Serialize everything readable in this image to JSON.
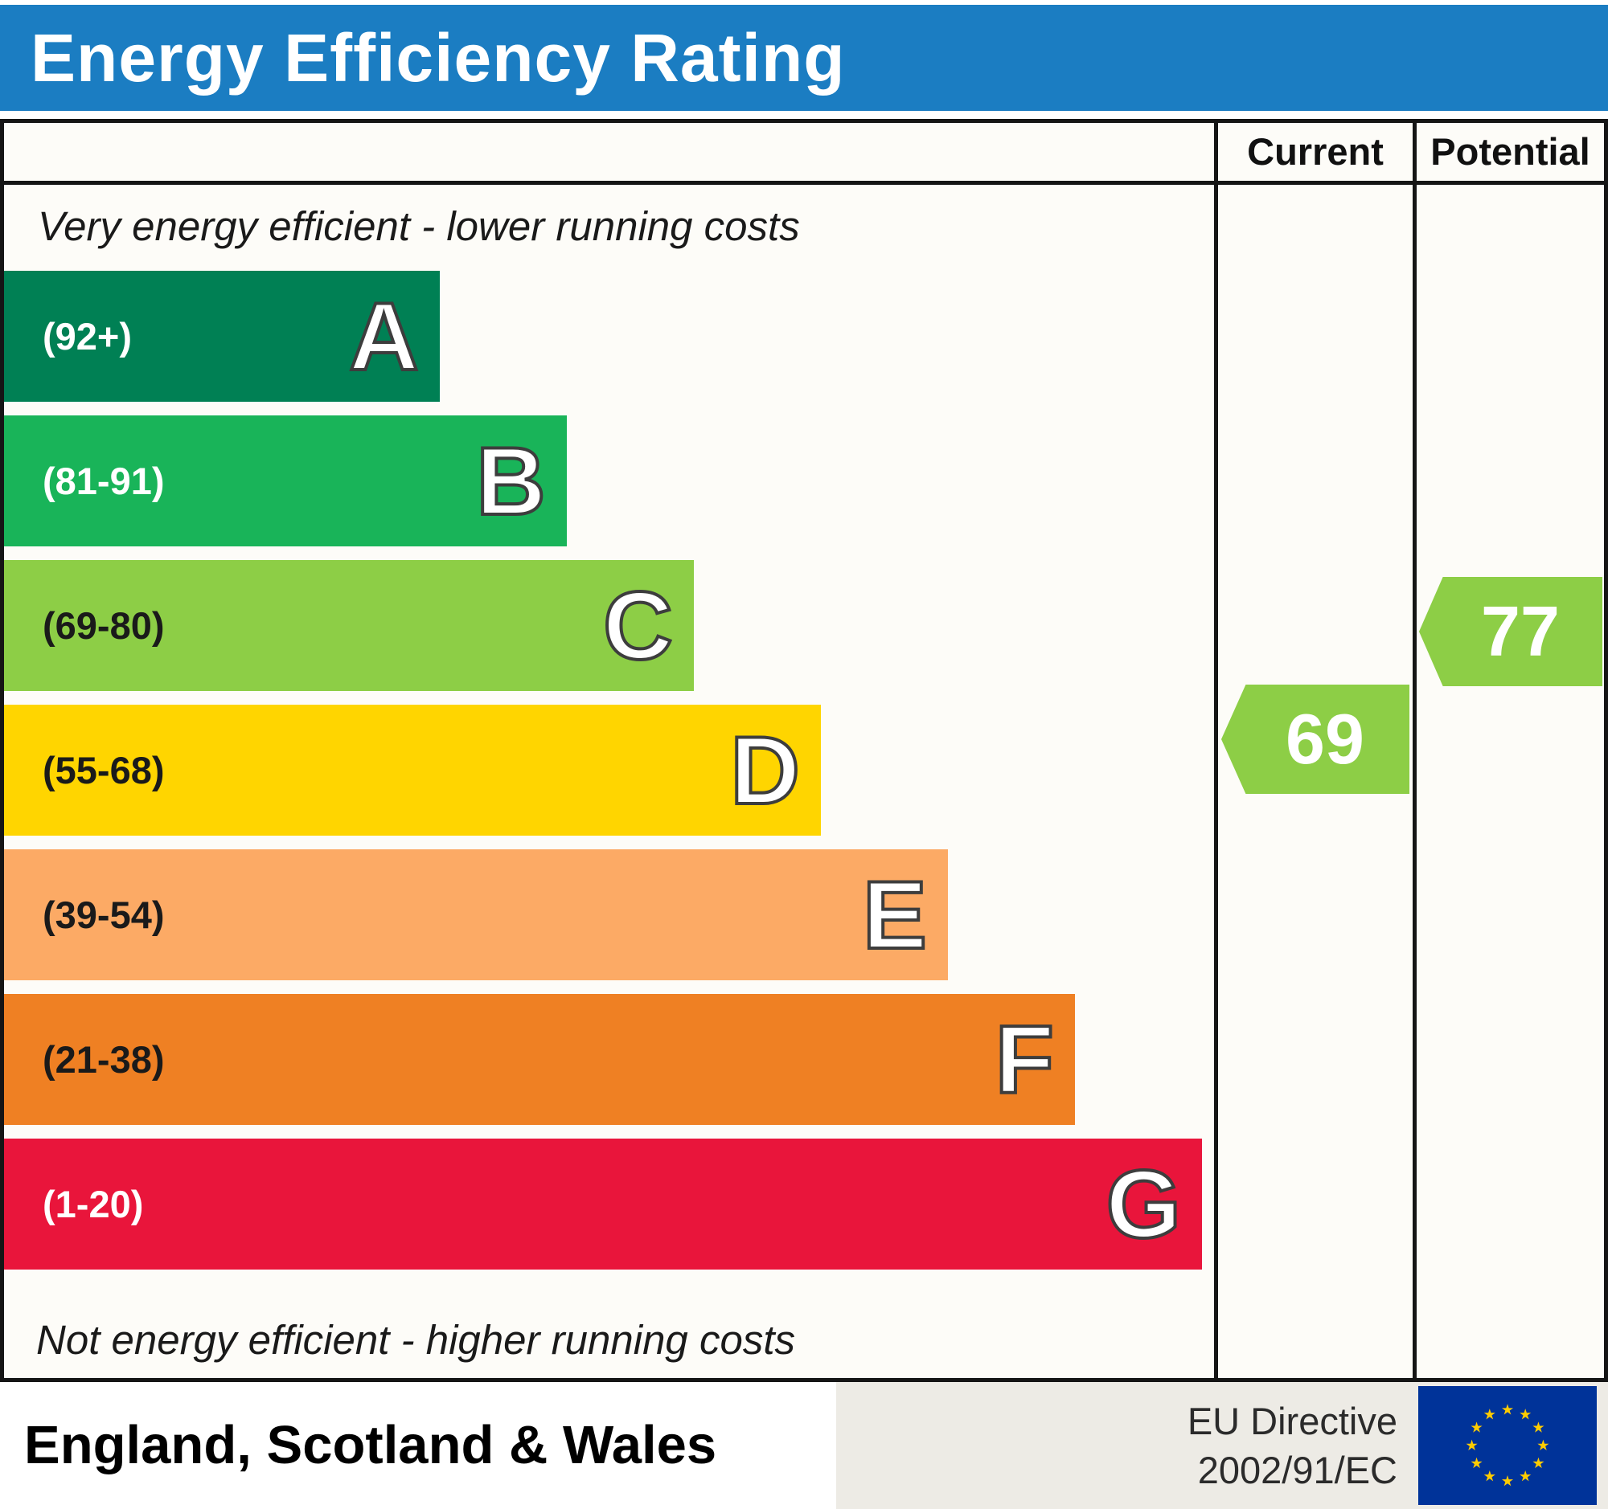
{
  "colors": {
    "header_bg": "#1b7dc2",
    "frame_border": "#151515",
    "body_bg": "#fdfcf8",
    "footer_panel_bg": "#edebe5",
    "eu_flag_blue": "#003399",
    "eu_star_yellow": "#ffcc00"
  },
  "header": {
    "title": "Energy Efficiency Rating"
  },
  "table": {
    "current_label": "Current",
    "potential_label": "Potential"
  },
  "chart_data": {
    "type": "bar",
    "title": "Energy Efficiency Rating",
    "top_note": "Very energy efficient - lower running costs",
    "bottom_note": "Not energy efficient - higher running costs",
    "bands": [
      {
        "letter": "A",
        "range": "(92+)",
        "color": "#008054",
        "label_color": "#ffffff",
        "width_pct": 36
      },
      {
        "letter": "B",
        "range": "(81-91)",
        "color": "#19b459",
        "label_color": "#ffffff",
        "width_pct": 46.5
      },
      {
        "letter": "C",
        "range": "(69-80)",
        "color": "#8dce46",
        "label_color": "#1a1a1a",
        "width_pct": 57
      },
      {
        "letter": "D",
        "range": "(55-68)",
        "color": "#ffd500",
        "label_color": "#1a1a1a",
        "width_pct": 67.5
      },
      {
        "letter": "E",
        "range": "(39-54)",
        "color": "#fcaa65",
        "label_color": "#1a1a1a",
        "width_pct": 78
      },
      {
        "letter": "F",
        "range": "(21-38)",
        "color": "#ef8023",
        "label_color": "#1a1a1a",
        "width_pct": 88.5
      },
      {
        "letter": "G",
        "range": "(1-20)",
        "color": "#e9153b",
        "label_color": "#ffffff",
        "width_pct": 99
      }
    ],
    "current": {
      "value": 69,
      "band": "C",
      "color": "#8dce46"
    },
    "potential": {
      "value": 77,
      "band": "C",
      "color": "#8dce46"
    }
  },
  "footer": {
    "region": "England, Scotland & Wales",
    "directive_line1": "EU Directive",
    "directive_line2": "2002/91/EC"
  }
}
